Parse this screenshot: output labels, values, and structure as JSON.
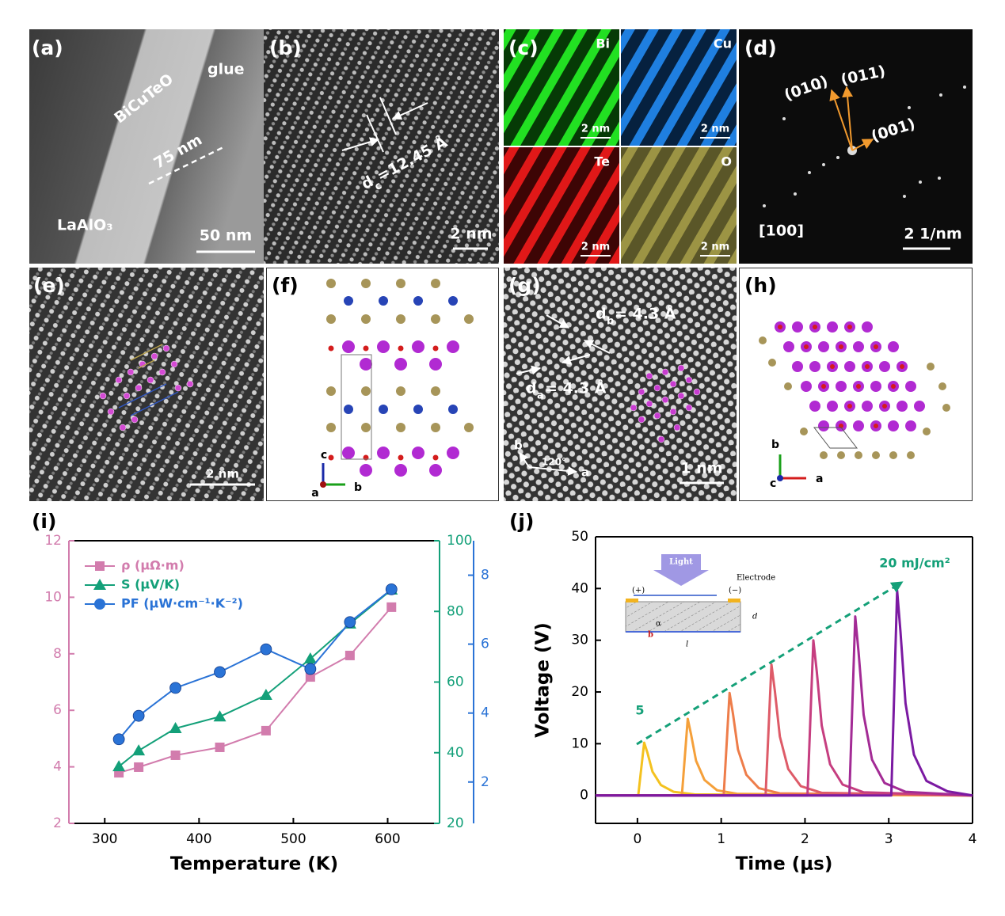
{
  "panels": {
    "a": {
      "label": "(a)",
      "film": "BiCuTeO",
      "glue": "glue",
      "thickness": "75 nm",
      "substrate": "LaAlO₃",
      "scale": "50 nm"
    },
    "b": {
      "label": "(b)",
      "d": "d",
      "sub": "c",
      "spacing": "=12.45 Å",
      "scale": "2 nm"
    },
    "c": {
      "label": "(c)",
      "elements": [
        "Bi",
        "Cu",
        "Te",
        "O"
      ],
      "scales": [
        "2 nm",
        "2 nm",
        "2 nm",
        "2 nm"
      ]
    },
    "d": {
      "label": "(d)",
      "spots": [
        "(010)",
        "(011)",
        "(001)"
      ],
      "zone": "[100]",
      "scale": "2 1/nm"
    },
    "e": {
      "label": "(e)",
      "scale": "2 nm"
    },
    "f": {
      "label": "(f)",
      "axes": [
        "c",
        "a",
        "b"
      ]
    },
    "g": {
      "label": "(g)",
      "db": "d",
      "db_sub": "b",
      "db_val": "= 4.3 Å",
      "da": "d",
      "da_sub": "a",
      "da_val": "= 4.3 Å",
      "axis_b": "b",
      "angle": "120°",
      "axis_a": "a",
      "scale": "1 nm"
    },
    "h": {
      "label": "(h)",
      "axes": [
        "b",
        "c",
        "a"
      ]
    },
    "i": {
      "label": "(i)"
    },
    "j": {
      "label": "(j)"
    }
  },
  "inset": {
    "light": "Light",
    "electrode": "Electrode",
    "plus": "(+)",
    "minus": "(−)",
    "d": "d",
    "l": "l",
    "alpha": "α",
    "b": "b"
  },
  "chart_data": [
    {
      "type": "line",
      "xlabel": "Temperature (K)",
      "x": [
        315,
        336,
        375,
        422,
        471,
        518,
        560,
        604
      ],
      "xlim": [
        262,
        655
      ],
      "xticks": [
        300,
        400,
        500,
        600
      ],
      "ylim": [
        2,
        12
      ],
      "yticks": [
        2,
        4,
        6,
        8,
        10,
        12
      ],
      "y2lim": [
        20,
        100
      ],
      "y2ticks": [
        20,
        40,
        60,
        80,
        100
      ],
      "y3lim": [
        0.8,
        9
      ],
      "y3ticks": [
        2,
        4,
        6,
        8
      ],
      "legend": "upper left",
      "series": [
        {
          "name": "ρ (μΩ·m)",
          "color": "#d27cad",
          "marker": "square",
          "values": [
            3.79,
            3.99,
            4.41,
            4.69,
            5.28,
            7.18,
            7.94,
            9.65
          ]
        },
        {
          "name": "S (μV/K)",
          "color": "#13a079",
          "marker": "triangle",
          "axis": "y2",
          "values": [
            36.1,
            40.6,
            46.9,
            50.2,
            56.3,
            66.6,
            76.5,
            86.1
          ]
        },
        {
          "name": "PF (μW·cm⁻¹·K⁻²)",
          "color": "#2a73d6",
          "marker": "circle",
          "axis": "y3",
          "values": [
            3.24,
            3.92,
            4.73,
            5.19,
            5.85,
            5.28,
            6.64,
            7.59
          ]
        }
      ]
    },
    {
      "type": "line",
      "xlabel": "Time (μs)",
      "ylabel": "Voltage (V)",
      "xlim": [
        -0.5,
        4
      ],
      "xticks": [
        0,
        1,
        2,
        3,
        4
      ],
      "ylim": [
        -5.4,
        50
      ],
      "yticks": [
        0,
        10,
        20,
        30,
        40,
        50
      ],
      "annotations": {
        "start": "5",
        "end": "20 mJ/cm²"
      },
      "series": [
        {
          "color": "#f4c21f",
          "x": [
            -0.5,
            0.01,
            0.045,
            0.08,
            0.12,
            0.18,
            0.28,
            0.43,
            0.68,
            4
          ],
          "values": [
            0,
            0,
            5.1,
            10.2,
            8.2,
            4.6,
            2,
            0.7,
            0.2,
            0
          ]
        },
        {
          "color": "#f5a03a",
          "x": [
            -0.5,
            0.53,
            0.565,
            0.6,
            0.64,
            0.7,
            0.8,
            0.95,
            1.2,
            4
          ],
          "values": [
            0,
            0,
            7.4,
            14.8,
            11.8,
            6.7,
            3,
            1,
            0.3,
            0
          ]
        },
        {
          "color": "#ee7d4a",
          "x": [
            -0.5,
            1.03,
            1.065,
            1.1,
            1.14,
            1.2,
            1.3,
            1.45,
            1.7,
            4
          ],
          "values": [
            0,
            0,
            9.9,
            19.8,
            15.8,
            8.9,
            4,
            1.4,
            0.4,
            0
          ]
        },
        {
          "color": "#de5b68",
          "x": [
            -0.5,
            1.53,
            1.565,
            1.6,
            1.64,
            1.7,
            1.8,
            1.95,
            2.2,
            4
          ],
          "values": [
            0,
            0,
            12.6,
            25.3,
            20.2,
            11.4,
            5.1,
            1.8,
            0.5,
            0
          ]
        },
        {
          "color": "#c63e80",
          "x": [
            -0.5,
            2.03,
            2.065,
            2.1,
            2.14,
            2.2,
            2.3,
            2.45,
            2.7,
            4
          ],
          "values": [
            0,
            0,
            15,
            30,
            24,
            13.5,
            6,
            2.1,
            0.6,
            0
          ]
        },
        {
          "color": "#a32b95",
          "x": [
            -0.5,
            2.53,
            2.565,
            2.6,
            2.64,
            2.7,
            2.8,
            2.95,
            3.2,
            4
          ],
          "values": [
            0,
            0,
            17.3,
            34.6,
            27.7,
            15.6,
            6.9,
            2.4,
            0.7,
            0
          ]
        },
        {
          "color": "#7b1aa2",
          "x": [
            -0.5,
            3.03,
            3.065,
            3.1,
            3.14,
            3.2,
            3.3,
            3.45,
            3.7,
            4
          ],
          "values": [
            0,
            0,
            19.8,
            39.6,
            31.7,
            17.8,
            7.9,
            2.8,
            0.8,
            0
          ]
        }
      ]
    }
  ]
}
